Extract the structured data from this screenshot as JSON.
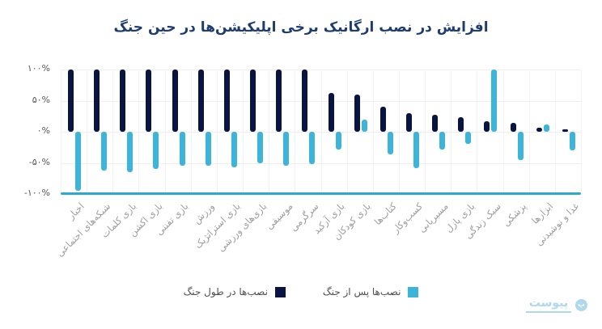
{
  "title": "افزایش در نصب ارگانیک برخی اپلیکیشن‌ها در حین جنگ",
  "chart_data": {
    "type": "bar",
    "categories_order": "displayed left to right",
    "categories": [
      "اخبار",
      "شبکه‌های اجتماعی",
      "بازی کلمات",
      "بازی اکشن",
      "بازی تفننی",
      "ورزش",
      "بازی استراتژیک",
      "بازی‌های ورزشی",
      "موسیقی",
      "سرگرمی",
      "بازی آرکید",
      "بازی کودکان",
      "کتاب‌ها",
      "کسب‌وکار",
      "مسیریابی",
      "بازی پازل",
      "سبک زندگی",
      "پزشکی",
      "ابزارها",
      "غذا و نوشیدنی"
    ],
    "series": [
      {
        "name": "نصب‌ها در طول جنگ",
        "color": "#0a1440",
        "values": [
          100,
          100,
          100,
          100,
          100,
          100,
          100,
          100,
          100,
          100,
          63,
          60,
          40,
          30,
          27,
          23,
          17,
          15,
          6,
          4
        ]
      },
      {
        "name": "نصب‌ها پس از جنگ",
        "color": "#3cb5d9",
        "values": [
          -95,
          -62,
          -65,
          -60,
          -54,
          -54,
          -57,
          -50,
          -54,
          -52,
          -28,
          20,
          -36,
          -58,
          -28,
          -19,
          100,
          -46,
          12,
          -30
        ]
      }
    ],
    "ylim": [
      -100,
      100
    ],
    "yticks": [
      {
        "label": "۱۰۰%",
        "value": 100
      },
      {
        "label": "۵۰%",
        "value": 50
      },
      {
        "label": "۰%",
        "value": 0
      },
      {
        "label": "-۵۰%",
        "value": -50
      },
      {
        "label": "-۱۰۰%",
        "value": -100
      }
    ],
    "grid": true,
    "legend_position": "bottom-center",
    "baseline_color": "#2ca9ce"
  },
  "watermark": {
    "text": "پیوست"
  },
  "colors": {
    "title": "#1e3c6f",
    "axis_tick_label": "#545454",
    "category_label": "#9b9b9b",
    "legend_text": "#4d4d4d",
    "grid": "#efefef",
    "watermark": "#aed8ec"
  }
}
